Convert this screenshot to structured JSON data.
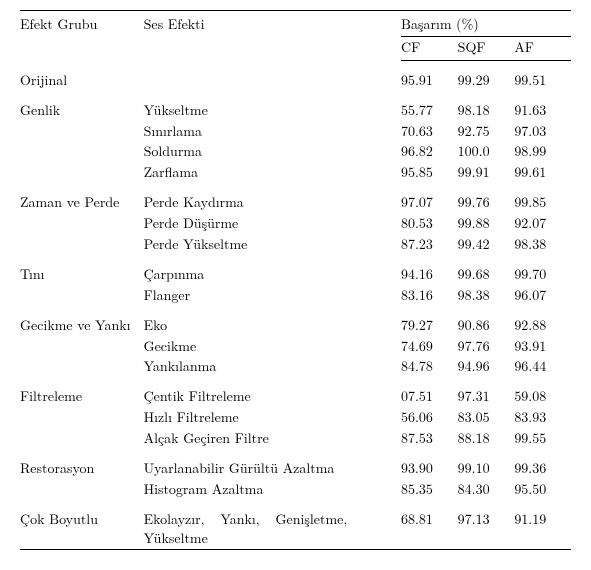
{
  "header": {
    "group": "Efekt Grubu",
    "effect": "Ses Efekti",
    "metric": "Başarım (%)",
    "cf": "CF",
    "sqf": "SQF",
    "af": "AF"
  },
  "sections": [
    {
      "group": "Orijinal",
      "rows": [
        {
          "effect": "",
          "cf": "95.91",
          "sqf": "99.29",
          "af": "99.51"
        }
      ]
    },
    {
      "group": "Genlik",
      "rows": [
        {
          "effect": "Yükseltme",
          "cf": "55.77",
          "sqf": "98.18",
          "af": "91.63"
        },
        {
          "effect": "Sınırlama",
          "cf": "70.63",
          "sqf": "92.75",
          "af": "97.03"
        },
        {
          "effect": "Soldurma",
          "cf": "96.82",
          "sqf": "100.0",
          "af": "98.99"
        },
        {
          "effect": "Zarflama",
          "cf": "95.85",
          "sqf": "99.91",
          "af": "99.61"
        }
      ]
    },
    {
      "group": "Zaman ve Perde",
      "rows": [
        {
          "effect": "Perde Kaydırma",
          "cf": "97.07",
          "sqf": "99.76",
          "af": "99.85"
        },
        {
          "effect": "Perde Düşürme",
          "cf": "80.53",
          "sqf": "99.88",
          "af": "92.07"
        },
        {
          "effect": "Perde Yükseltme",
          "cf": "87.23",
          "sqf": "99.42",
          "af": "98.38"
        }
      ]
    },
    {
      "group": "Tını",
      "rows": [
        {
          "effect": "Çarpınma",
          "cf": "94.16",
          "sqf": "99.68",
          "af": "99.70"
        },
        {
          "effect": "Flanger",
          "cf": "83.16",
          "sqf": "98.38",
          "af": "96.07"
        }
      ]
    },
    {
      "group": "Gecikme ve Yankı",
      "rows": [
        {
          "effect": "Eko",
          "cf": "79.27",
          "sqf": "90.86",
          "af": "92.88"
        },
        {
          "effect": "Gecikme",
          "cf": "74.69",
          "sqf": "97.76",
          "af": "93.91"
        },
        {
          "effect": "Yankılanma",
          "cf": "84.78",
          "sqf": "94.96",
          "af": "96.44"
        }
      ]
    },
    {
      "group": "Filtreleme",
      "rows": [
        {
          "effect": "Çentik Filtreleme",
          "cf": "07.51",
          "sqf": "97.31",
          "af": "59.08"
        },
        {
          "effect": "Hızlı Filtreleme",
          "cf": "56.06",
          "sqf": "83.05",
          "af": "83.93"
        },
        {
          "effect": "Alçak Geçiren Filtre",
          "cf": "87.53",
          "sqf": "88.18",
          "af": "99.55"
        }
      ]
    },
    {
      "group": "Restorasyon",
      "rows": [
        {
          "effect": "Uyarlanabilir Gürültü Azaltma",
          "cf": "93.90",
          "sqf": "99.10",
          "af": "99.36"
        },
        {
          "effect": "Histogram Azaltma",
          "cf": "85.35",
          "sqf": "84.30",
          "af": "95.50"
        }
      ]
    },
    {
      "group": "Çok Boyutlu",
      "rows": [
        {
          "effect": "Ekolayzır, Yankı, Genişletme, Yükseltme",
          "wrap": true,
          "cf": "68.81",
          "sqf": "97.13",
          "af": "91.19"
        }
      ]
    }
  ]
}
